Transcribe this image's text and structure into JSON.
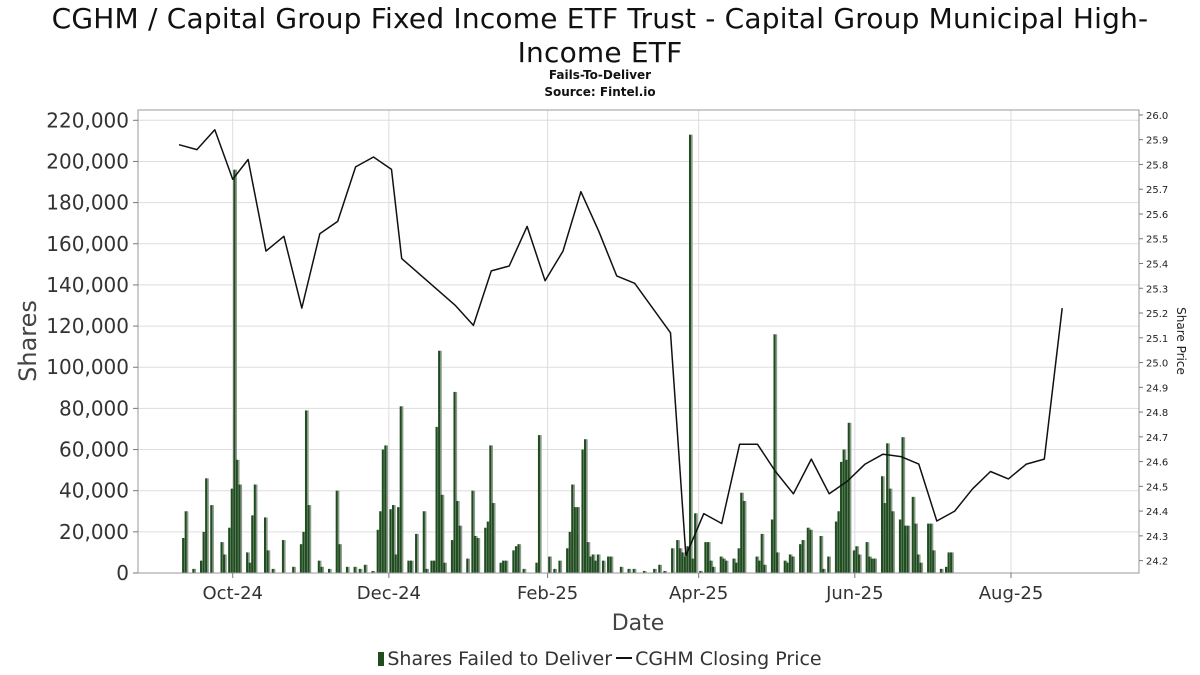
{
  "title": "CGHM / Capital Group Fixed Income ETF Trust - Capital Group Municipal High-Income ETF",
  "subtitle": "Fails-To-Deliver",
  "source": "Source: Fintel.io",
  "colors": {
    "ftd_bar": "#1e4d1e",
    "ftd_bar_shadow": "#8f9a8f",
    "price_line": "#111111",
    "grid": "#dddddd"
  },
  "chart_data": {
    "type": "bar",
    "xlabel": "Date",
    "ylabel": "Shares",
    "y2label": "Share Price",
    "ylim": [
      0,
      225000
    ],
    "y2lim": [
      24.15,
      26.02
    ],
    "x_range": [
      "2024-08-25",
      "2025-09-20"
    ],
    "yticks": [
      "0",
      "20,000",
      "40,000",
      "60,000",
      "80,000",
      "100,000",
      "120,000",
      "140,000",
      "160,000",
      "180,000",
      "200,000",
      "220,000"
    ],
    "y2ticks": [
      "24.2",
      "24.3",
      "24.4",
      "24.5",
      "24.6",
      "24.7",
      "24.8",
      "24.9",
      "25.0",
      "25.1",
      "25.2",
      "25.3",
      "25.4",
      "25.5",
      "25.6",
      "25.7",
      "25.8",
      "25.9",
      "26.0"
    ],
    "xticks": [
      {
        "label": "Oct-24",
        "date": "2024-10-01"
      },
      {
        "label": "Dec-24",
        "date": "2024-12-01"
      },
      {
        "label": "Feb-25",
        "date": "2025-02-01"
      },
      {
        "label": "Apr-25",
        "date": "2025-04-01"
      },
      {
        "label": "Jun-25",
        "date": "2025-06-01"
      },
      {
        "label": "Aug-25",
        "date": "2025-08-01"
      }
    ],
    "grid": true,
    "legend_position": "bottom-center",
    "series": [
      {
        "name": "Shares Failed to Deliver",
        "type": "bar",
        "points": [
          [
            "2024-09-12",
            17000
          ],
          [
            "2024-09-13",
            30000
          ],
          [
            "2024-09-16",
            2000
          ],
          [
            "2024-09-19",
            6000
          ],
          [
            "2024-09-20",
            20000
          ],
          [
            "2024-09-21",
            46000
          ],
          [
            "2024-09-23",
            33000
          ],
          [
            "2024-09-27",
            15000
          ],
          [
            "2024-09-28",
            9000
          ],
          [
            "2024-09-30",
            22000
          ],
          [
            "2024-10-01",
            41000
          ],
          [
            "2024-10-02",
            196000
          ],
          [
            "2024-10-03",
            55000
          ],
          [
            "2024-10-04",
            43000
          ],
          [
            "2024-10-07",
            10000
          ],
          [
            "2024-10-08",
            5000
          ],
          [
            "2024-10-09",
            28000
          ],
          [
            "2024-10-10",
            43000
          ],
          [
            "2024-10-14",
            27000
          ],
          [
            "2024-10-15",
            11000
          ],
          [
            "2024-10-17",
            2000
          ],
          [
            "2024-10-21",
            16000
          ],
          [
            "2024-10-25",
            3000
          ],
          [
            "2024-10-28",
            14000
          ],
          [
            "2024-10-29",
            20000
          ],
          [
            "2024-10-30",
            79000
          ],
          [
            "2024-10-31",
            33000
          ],
          [
            "2024-11-04",
            6000
          ],
          [
            "2024-11-05",
            3000
          ],
          [
            "2024-11-08",
            2000
          ],
          [
            "2024-11-11",
            40000
          ],
          [
            "2024-11-12",
            14000
          ],
          [
            "2024-11-15",
            3000
          ],
          [
            "2024-11-18",
            3000
          ],
          [
            "2024-11-20",
            2000
          ],
          [
            "2024-11-22",
            4000
          ],
          [
            "2024-11-25",
            1000
          ],
          [
            "2024-11-27",
            21000
          ],
          [
            "2024-11-28",
            30000
          ],
          [
            "2024-11-29",
            60000
          ],
          [
            "2024-11-30",
            62000
          ],
          [
            "2024-12-02",
            31000
          ],
          [
            "2024-12-03",
            33000
          ],
          [
            "2024-12-04",
            9000
          ],
          [
            "2024-12-05",
            32000
          ],
          [
            "2024-12-06",
            81000
          ],
          [
            "2024-12-09",
            6000
          ],
          [
            "2024-12-10",
            6000
          ],
          [
            "2024-12-12",
            19000
          ],
          [
            "2024-12-15",
            30000
          ],
          [
            "2024-12-16",
            2000
          ],
          [
            "2024-12-18",
            6000
          ],
          [
            "2024-12-19",
            6000
          ],
          [
            "2024-12-20",
            71000
          ],
          [
            "2024-12-21",
            108000
          ],
          [
            "2024-12-22",
            38000
          ],
          [
            "2024-12-23",
            5000
          ],
          [
            "2024-12-26",
            16000
          ],
          [
            "2024-12-27",
            88000
          ],
          [
            "2024-12-28",
            35000
          ],
          [
            "2024-12-29",
            23000
          ],
          [
            "2025-01-01",
            7000
          ],
          [
            "2025-01-03",
            40000
          ],
          [
            "2025-01-04",
            18000
          ],
          [
            "2025-01-05",
            17000
          ],
          [
            "2025-01-08",
            22000
          ],
          [
            "2025-01-09",
            25000
          ],
          [
            "2025-01-10",
            62000
          ],
          [
            "2025-01-11",
            34000
          ],
          [
            "2025-01-14",
            5000
          ],
          [
            "2025-01-15",
            6000
          ],
          [
            "2025-01-16",
            6000
          ],
          [
            "2025-01-19",
            11000
          ],
          [
            "2025-01-20",
            13000
          ],
          [
            "2025-01-21",
            14000
          ],
          [
            "2025-01-23",
            2000
          ],
          [
            "2025-01-28",
            5000
          ],
          [
            "2025-01-29",
            67000
          ],
          [
            "2025-02-02",
            8000
          ],
          [
            "2025-02-04",
            2000
          ],
          [
            "2025-02-06",
            6000
          ],
          [
            "2025-02-09",
            12000
          ],
          [
            "2025-02-10",
            20000
          ],
          [
            "2025-02-11",
            43000
          ],
          [
            "2025-02-12",
            32000
          ],
          [
            "2025-02-13",
            32000
          ],
          [
            "2025-02-15",
            60000
          ],
          [
            "2025-02-16",
            65000
          ],
          [
            "2025-02-17",
            15000
          ],
          [
            "2025-02-18",
            8000
          ],
          [
            "2025-02-19",
            9000
          ],
          [
            "2025-02-20",
            6000
          ],
          [
            "2025-02-21",
            9000
          ],
          [
            "2025-02-23",
            6000
          ],
          [
            "2025-02-25",
            8000
          ],
          [
            "2025-02-26",
            8000
          ],
          [
            "2025-03-02",
            3000
          ],
          [
            "2025-03-05",
            2000
          ],
          [
            "2025-03-07",
            2000
          ],
          [
            "2025-03-11",
            1000
          ],
          [
            "2025-03-15",
            2000
          ],
          [
            "2025-03-17",
            4000
          ],
          [
            "2025-03-19",
            1000
          ],
          [
            "2025-03-22",
            12000
          ],
          [
            "2025-03-24",
            16000
          ],
          [
            "2025-03-25",
            12000
          ],
          [
            "2025-03-26",
            10000
          ],
          [
            "2025-03-27",
            8000
          ],
          [
            "2025-03-28",
            13000
          ],
          [
            "2025-03-29",
            213000
          ],
          [
            "2025-03-30",
            7000
          ],
          [
            "2025-03-31",
            29000
          ],
          [
            "2025-04-02",
            1000
          ],
          [
            "2025-04-04",
            15000
          ],
          [
            "2025-04-05",
            15000
          ],
          [
            "2025-04-06",
            6000
          ],
          [
            "2025-04-07",
            3000
          ],
          [
            "2025-04-10",
            8000
          ],
          [
            "2025-04-11",
            7000
          ],
          [
            "2025-04-12",
            6000
          ],
          [
            "2025-04-15",
            7000
          ],
          [
            "2025-04-16",
            5000
          ],
          [
            "2025-04-17",
            12000
          ],
          [
            "2025-04-18",
            39000
          ],
          [
            "2025-04-19",
            35000
          ],
          [
            "2025-04-24",
            8000
          ],
          [
            "2025-04-25",
            6000
          ],
          [
            "2025-04-26",
            19000
          ],
          [
            "2025-04-27",
            4000
          ],
          [
            "2025-04-30",
            26000
          ],
          [
            "2025-05-01",
            116000
          ],
          [
            "2025-05-02",
            10000
          ],
          [
            "2025-05-05",
            6000
          ],
          [
            "2025-05-06",
            5000
          ],
          [
            "2025-05-07",
            9000
          ],
          [
            "2025-05-08",
            8000
          ],
          [
            "2025-05-11",
            14000
          ],
          [
            "2025-05-12",
            16000
          ],
          [
            "2025-05-14",
            22000
          ],
          [
            "2025-05-15",
            21000
          ],
          [
            "2025-05-19",
            18000
          ],
          [
            "2025-05-20",
            2000
          ],
          [
            "2025-05-22",
            8000
          ],
          [
            "2025-05-25",
            25000
          ],
          [
            "2025-05-26",
            30000
          ],
          [
            "2025-05-27",
            54000
          ],
          [
            "2025-05-28",
            60000
          ],
          [
            "2025-05-29",
            55000
          ],
          [
            "2025-05-30",
            73000
          ],
          [
            "2025-06-01",
            11000
          ],
          [
            "2025-06-02",
            13000
          ],
          [
            "2025-06-03",
            9000
          ],
          [
            "2025-06-06",
            15000
          ],
          [
            "2025-06-07",
            8000
          ],
          [
            "2025-06-08",
            7000
          ],
          [
            "2025-06-09",
            7000
          ],
          [
            "2025-06-12",
            47000
          ],
          [
            "2025-06-13",
            34000
          ],
          [
            "2025-06-14",
            63000
          ],
          [
            "2025-06-15",
            41000
          ],
          [
            "2025-06-16",
            30000
          ],
          [
            "2025-06-19",
            26000
          ],
          [
            "2025-06-20",
            66000
          ],
          [
            "2025-06-21",
            23000
          ],
          [
            "2025-06-22",
            23000
          ],
          [
            "2025-06-24",
            37000
          ],
          [
            "2025-06-25",
            24000
          ],
          [
            "2025-06-26",
            9000
          ],
          [
            "2025-06-27",
            5000
          ],
          [
            "2025-06-30",
            24000
          ],
          [
            "2025-07-01",
            24000
          ],
          [
            "2025-07-02",
            11000
          ],
          [
            "2025-07-05",
            2000
          ],
          [
            "2025-07-07",
            3000
          ],
          [
            "2025-07-08",
            10000
          ],
          [
            "2025-07-09",
            10000
          ]
        ]
      },
      {
        "name": "CGHM Closing Price",
        "type": "line",
        "axis": "right",
        "points": [
          [
            "2024-09-10",
            25.88
          ],
          [
            "2024-09-17",
            25.86
          ],
          [
            "2024-09-24",
            25.94
          ],
          [
            "2024-10-01",
            25.74
          ],
          [
            "2024-10-07",
            25.82
          ],
          [
            "2024-10-14",
            25.45
          ],
          [
            "2024-10-21",
            25.51
          ],
          [
            "2024-10-28",
            25.22
          ],
          [
            "2024-11-04",
            25.52
          ],
          [
            "2024-11-11",
            25.57
          ],
          [
            "2024-11-18",
            25.79
          ],
          [
            "2024-11-25",
            25.83
          ],
          [
            "2024-12-02",
            25.78
          ],
          [
            "2024-12-06",
            25.42
          ],
          [
            "2024-12-27",
            25.23
          ],
          [
            "2025-01-03",
            25.15
          ],
          [
            "2025-01-10",
            25.37
          ],
          [
            "2025-01-17",
            25.39
          ],
          [
            "2025-01-24",
            25.55
          ],
          [
            "2025-01-31",
            25.33
          ],
          [
            "2025-02-07",
            25.45
          ],
          [
            "2025-02-14",
            25.69
          ],
          [
            "2025-02-21",
            25.53
          ],
          [
            "2025-02-28",
            25.35
          ],
          [
            "2025-03-07",
            25.32
          ],
          [
            "2025-03-21",
            25.12
          ],
          [
            "2025-03-27",
            24.22
          ],
          [
            "2025-04-03",
            24.39
          ],
          [
            "2025-04-10",
            24.35
          ],
          [
            "2025-04-17",
            24.67
          ],
          [
            "2025-04-24",
            24.67
          ],
          [
            "2025-05-01",
            24.56
          ],
          [
            "2025-05-08",
            24.47
          ],
          [
            "2025-05-15",
            24.61
          ],
          [
            "2025-05-22",
            24.47
          ],
          [
            "2025-05-29",
            24.52
          ],
          [
            "2025-06-05",
            24.59
          ],
          [
            "2025-06-12",
            24.63
          ],
          [
            "2025-06-19",
            24.62
          ],
          [
            "2025-06-26",
            24.59
          ],
          [
            "2025-07-03",
            24.36
          ],
          [
            "2025-07-10",
            24.4
          ],
          [
            "2025-07-17",
            24.49
          ],
          [
            "2025-07-24",
            24.56
          ],
          [
            "2025-07-31",
            24.53
          ],
          [
            "2025-08-07",
            24.59
          ],
          [
            "2025-08-14",
            24.61
          ],
          [
            "2025-08-21",
            25.22
          ]
        ]
      }
    ]
  }
}
